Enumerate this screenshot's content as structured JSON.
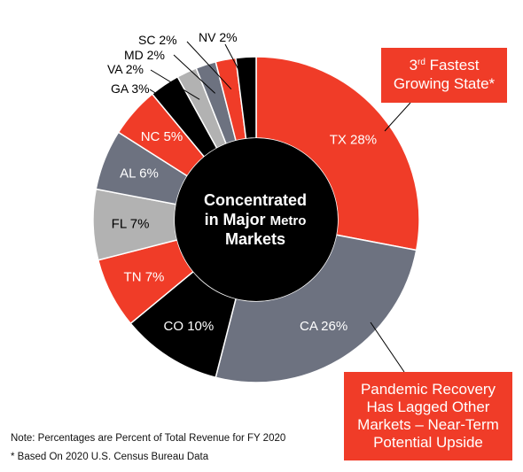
{
  "chart_data": {
    "type": "pie",
    "donut": true,
    "center_label": {
      "line1": "Concentrated",
      "line2_a": "in Major ",
      "line2_b": "Metro",
      "line3": "Markets"
    },
    "slices": [
      {
        "label": "TX 28%",
        "value": 28,
        "color": "#f03c28"
      },
      {
        "label": "CA 26%",
        "value": 26,
        "color": "#6d7280"
      },
      {
        "label": "CO 10%",
        "value": 10,
        "color": "#000000"
      },
      {
        "label": "TN 7%",
        "value": 7,
        "color": "#f03c28"
      },
      {
        "label": "FL 7%",
        "value": 7,
        "color": "#b2b2b2"
      },
      {
        "label": "AL 6%",
        "value": 6,
        "color": "#6d7280"
      },
      {
        "label": "NC 5%",
        "value": 5,
        "color": "#f03c28"
      },
      {
        "label": "GA 3%",
        "value": 3,
        "color": "#000000"
      },
      {
        "label": "VA 2%",
        "value": 2,
        "color": "#b2b2b2"
      },
      {
        "label": "MD 2%",
        "value": 2,
        "color": "#6d7280"
      },
      {
        "label": "SC 2%",
        "value": 2,
        "color": "#f03c28"
      },
      {
        "label": "NV 2%",
        "value": 2,
        "color": "#000000"
      }
    ]
  },
  "callouts": {
    "top_sup": "rd",
    "top_num": "3",
    "top_line1_rest": " Fastest",
    "top_line2": "Growing State*",
    "bottom_line1": "Pandemic Recovery",
    "bottom_line2": "Has Lagged Other",
    "bottom_line3": "Markets – Near-Term",
    "bottom_line4": "Potential Upside"
  },
  "notes": {
    "note1": "Note: Percentages are Percent of Total Revenue for FY 2020",
    "note2": "* Based On 2020 U.S. Census Bureau Data"
  },
  "colors": {
    "red": "#f03c28",
    "dark_gray": "#6d7280",
    "light_gray": "#b2b2b2",
    "black": "#000000"
  }
}
